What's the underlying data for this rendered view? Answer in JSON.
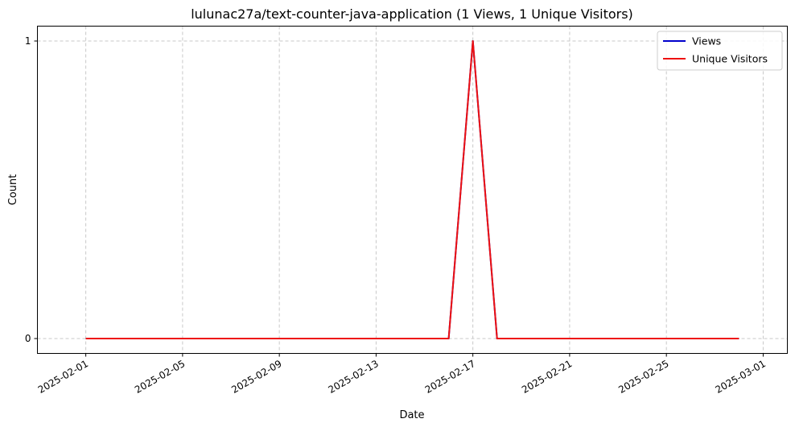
{
  "chart_data": {
    "type": "line",
    "title": "lulunac27a/text-counter-java-application (1 Views, 1 Unique Visitors)",
    "xlabel": "Date",
    "ylabel": "Count",
    "x_type": "date",
    "x": [
      "2025-02-01",
      "2025-02-02",
      "2025-02-03",
      "2025-02-04",
      "2025-02-05",
      "2025-02-06",
      "2025-02-07",
      "2025-02-08",
      "2025-02-09",
      "2025-02-10",
      "2025-02-11",
      "2025-02-12",
      "2025-02-13",
      "2025-02-14",
      "2025-02-15",
      "2025-02-16",
      "2025-02-17",
      "2025-02-18",
      "2025-02-19",
      "2025-02-20",
      "2025-02-21",
      "2025-02-22",
      "2025-02-23",
      "2025-02-24",
      "2025-02-25",
      "2025-02-26",
      "2025-02-27",
      "2025-02-28"
    ],
    "series": [
      {
        "name": "Views",
        "color": "#0000cc",
        "values": [
          0,
          0,
          0,
          0,
          0,
          0,
          0,
          0,
          0,
          0,
          0,
          0,
          0,
          0,
          0,
          0,
          1,
          0,
          0,
          0,
          0,
          0,
          0,
          0,
          0,
          0,
          0,
          0
        ]
      },
      {
        "name": "Unique Visitors",
        "color": "#ee1111",
        "values": [
          0,
          0,
          0,
          0,
          0,
          0,
          0,
          0,
          0,
          0,
          0,
          0,
          0,
          0,
          0,
          0,
          1,
          0,
          0,
          0,
          0,
          0,
          0,
          0,
          0,
          0,
          0,
          0
        ]
      }
    ],
    "xlim": [
      "2025-01-30",
      "2025-03-02"
    ],
    "ylim": [
      -0.05,
      1.05
    ],
    "x_ticks": [
      "2025-02-01",
      "2025-02-05",
      "2025-02-09",
      "2025-02-13",
      "2025-02-17",
      "2025-02-21",
      "2025-02-25",
      "2025-03-01"
    ],
    "y_ticks": [
      0,
      1
    ],
    "grid": true,
    "grid_style": "dashed",
    "legend_position": "top-right"
  }
}
